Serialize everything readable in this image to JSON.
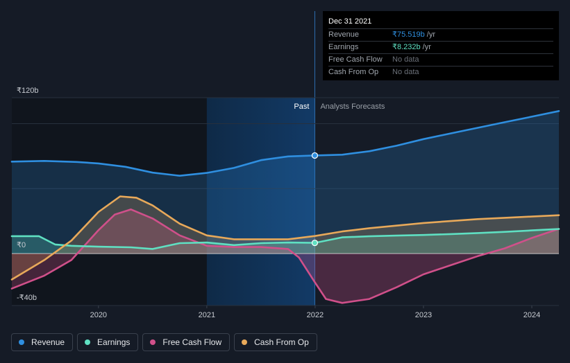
{
  "tooltip": {
    "date": "Dec 31 2021",
    "rows": [
      {
        "label": "Revenue",
        "value": "₹75.519b",
        "unit": "/yr",
        "color": "#2f8fe0"
      },
      {
        "label": "Earnings",
        "value": "₹8.232b",
        "unit": "/yr",
        "color": "#5fe0c2"
      },
      {
        "label": "Free Cash Flow",
        "value": "No data",
        "unit": "",
        "color": ""
      },
      {
        "label": "Cash From Op",
        "value": "No data",
        "unit": "",
        "color": ""
      }
    ]
  },
  "legend": [
    {
      "label": "Revenue",
      "color": "#2f8fe0"
    },
    {
      "label": "Earnings",
      "color": "#5fe0c2"
    },
    {
      "label": "Free Cash Flow",
      "color": "#d0508a"
    },
    {
      "label": "Cash From Op",
      "color": "#e8a95a"
    }
  ],
  "chart_data": {
    "type": "line",
    "y_tick_labels": [
      "₹120b",
      "₹0",
      "-₹40b"
    ],
    "y_ticks": [
      120,
      0,
      -40
    ],
    "ylim": [
      -40,
      120
    ],
    "x_tick_labels": [
      "2020",
      "2021",
      "2022",
      "2023",
      "2024"
    ],
    "x_ticks": [
      2020,
      2021,
      2022,
      2023,
      2024
    ],
    "xlim": [
      2019.2,
      2024.25
    ],
    "divider_x": 2021.997,
    "past_label": "Past",
    "forecast_label": "Analysts Forecasts",
    "grid": true,
    "series": [
      {
        "name": "Revenue",
        "color": "#2f8fe0",
        "points": [
          [
            2019.2,
            70.8
          ],
          [
            2019.5,
            71.3
          ],
          [
            2019.8,
            70.5
          ],
          [
            2020.0,
            69.4
          ],
          [
            2020.25,
            66.8
          ],
          [
            2020.5,
            62.3
          ],
          [
            2020.75,
            59.9
          ],
          [
            2021.0,
            62.1
          ],
          [
            2021.25,
            65.9
          ],
          [
            2021.5,
            71.9
          ],
          [
            2021.75,
            74.8
          ],
          [
            2021.997,
            75.5
          ],
          [
            2022.25,
            76.1
          ],
          [
            2022.5,
            78.8
          ],
          [
            2022.75,
            83.0
          ],
          [
            2023.0,
            88.1
          ],
          [
            2023.25,
            92.5
          ],
          [
            2023.5,
            96.8
          ],
          [
            2023.75,
            101.1
          ],
          [
            2024.0,
            105.4
          ],
          [
            2024.25,
            109.7
          ]
        ]
      },
      {
        "name": "Earnings",
        "color": "#5fe0c2",
        "points": [
          [
            2019.2,
            13.4
          ],
          [
            2019.45,
            13.4
          ],
          [
            2019.6,
            7.0
          ],
          [
            2019.75,
            6.0
          ],
          [
            2020.0,
            5.3
          ],
          [
            2020.3,
            4.8
          ],
          [
            2020.5,
            3.5
          ],
          [
            2020.75,
            8.0
          ],
          [
            2021.0,
            8.5
          ],
          [
            2021.25,
            6.5
          ],
          [
            2021.5,
            8.0
          ],
          [
            2021.75,
            8.5
          ],
          [
            2021.997,
            8.232
          ],
          [
            2022.25,
            12.5
          ],
          [
            2022.5,
            13.3
          ],
          [
            2022.75,
            13.8
          ],
          [
            2023.0,
            14.3
          ],
          [
            2023.25,
            15.0
          ],
          [
            2023.5,
            15.8
          ],
          [
            2023.75,
            16.7
          ],
          [
            2024.0,
            17.8
          ],
          [
            2024.25,
            18.9
          ]
        ]
      },
      {
        "name": "Free Cash Flow",
        "color": "#d0508a",
        "points": [
          [
            2019.2,
            -27
          ],
          [
            2019.5,
            -17
          ],
          [
            2019.75,
            -5
          ],
          [
            2020.0,
            18
          ],
          [
            2020.15,
            30
          ],
          [
            2020.3,
            34
          ],
          [
            2020.5,
            27
          ],
          [
            2020.75,
            14
          ],
          [
            2021.0,
            6
          ],
          [
            2021.25,
            5
          ],
          [
            2021.5,
            5
          ],
          [
            2021.75,
            3.5
          ],
          [
            2021.85,
            -3
          ],
          [
            2021.997,
            -22
          ],
          [
            2022.1,
            -35
          ],
          [
            2022.25,
            -38
          ],
          [
            2022.5,
            -35
          ],
          [
            2022.75,
            -26
          ],
          [
            2023.0,
            -16
          ],
          [
            2023.25,
            -9
          ],
          [
            2023.5,
            -2
          ],
          [
            2023.75,
            4
          ],
          [
            2024.0,
            12
          ],
          [
            2024.25,
            19
          ]
        ]
      },
      {
        "name": "Cash From Op",
        "color": "#e8a95a",
        "points": [
          [
            2019.2,
            -20
          ],
          [
            2019.5,
            -5
          ],
          [
            2019.75,
            10
          ],
          [
            2020.0,
            32
          ],
          [
            2020.2,
            44
          ],
          [
            2020.35,
            43
          ],
          [
            2020.5,
            37
          ],
          [
            2020.75,
            23
          ],
          [
            2021.0,
            14
          ],
          [
            2021.25,
            11
          ],
          [
            2021.5,
            11
          ],
          [
            2021.75,
            11
          ],
          [
            2021.997,
            13.5
          ],
          [
            2022.25,
            17
          ],
          [
            2022.5,
            19.5
          ],
          [
            2022.75,
            21.5
          ],
          [
            2023.0,
            23.5
          ],
          [
            2023.25,
            25
          ],
          [
            2023.5,
            26.5
          ],
          [
            2023.75,
            27.5
          ],
          [
            2024.0,
            28.5
          ],
          [
            2024.25,
            29.5
          ]
        ]
      }
    ],
    "highlight": {
      "x": 2021.997,
      "series": [
        "Revenue",
        "Earnings"
      ]
    }
  }
}
